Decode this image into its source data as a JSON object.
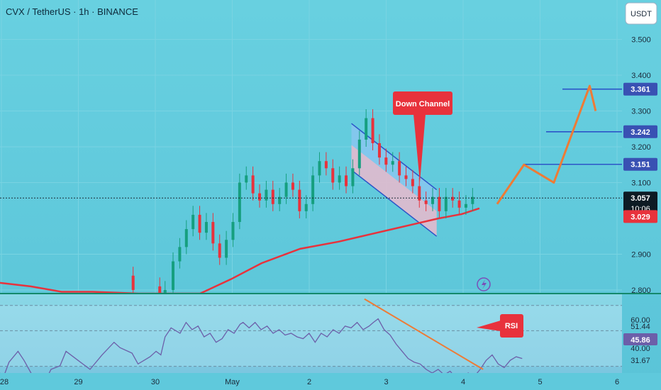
{
  "header": {
    "title": "CVX / TetherUS · 1h · BINANCE",
    "currency_button": "USDT"
  },
  "chart_data": {
    "type": "candlestick",
    "symbol": "CVX / TetherUS",
    "interval": "1h",
    "exchange": "BINANCE",
    "price_axis": {
      "ticks": [
        "3.500",
        "3.400",
        "3.300",
        "3.200",
        "3.100",
        "2.900",
        "2.800"
      ],
      "tick_values": [
        3.5,
        3.4,
        3.3,
        3.2,
        3.1,
        2.9,
        2.8
      ],
      "range": [
        2.79,
        3.61
      ]
    },
    "time_axis": {
      "labels": [
        "28",
        "29",
        "30",
        "May",
        "2",
        "3",
        "4",
        "5",
        "6"
      ]
    },
    "price_labels": [
      {
        "text": "3.361",
        "value": 3.361,
        "color": "#3951b3"
      },
      {
        "text": "3.242",
        "value": 3.242,
        "color": "#3951b3"
      },
      {
        "text": "3.151",
        "value": 3.151,
        "color": "#3951b3"
      }
    ],
    "current_price": {
      "text": "3.057",
      "value": 3.057,
      "countdown": "10:06"
    },
    "ma_price": {
      "text": "3.029",
      "value": 3.029,
      "color": "#e8323c"
    },
    "annotations": {
      "channel_label": "Down Channel",
      "rsi_label": "RSI"
    },
    "channel": {
      "upper": [
        [
          2.64,
          3.265
        ],
        [
          3.28,
          3.08
        ]
      ],
      "lower": [
        [
          2.64,
          3.135
        ],
        [
          3.28,
          2.95
        ]
      ]
    },
    "target_path": [
      [
        3.33,
        3.04
      ],
      [
        3.51,
        3.15
      ],
      [
        3.71,
        3.1
      ],
      [
        3.95,
        3.37
      ],
      [
        3.99,
        3.3
      ]
    ],
    "ma_line": [
      [
        0.0,
        2.82
      ],
      [
        0.4,
        2.81
      ],
      [
        0.8,
        2.795
      ],
      [
        1.2,
        2.795
      ],
      [
        1.8,
        2.79
      ],
      [
        2.6,
        2.79
      ],
      [
        3.0,
        2.83
      ],
      [
        3.4,
        2.875
      ],
      [
        3.9,
        2.915
      ],
      [
        4.4,
        2.935
      ],
      [
        4.8,
        2.955
      ],
      [
        5.1,
        2.97
      ],
      [
        5.4,
        2.985
      ],
      [
        5.7,
        3.0
      ],
      [
        6.0,
        3.012
      ],
      [
        6.23,
        3.028
      ]
    ],
    "candles": [
      [
        1.0,
        2.84,
        2.8
      ],
      [
        1.2,
        2.81,
        2.78
      ],
      [
        1.24,
        2.77,
        2.8
      ],
      [
        1.3,
        2.8,
        2.88
      ],
      [
        1.35,
        2.88,
        2.92
      ],
      [
        1.4,
        2.92,
        2.97
      ],
      [
        1.45,
        2.97,
        3.01
      ],
      [
        1.5,
        3.01,
        2.96
      ],
      [
        1.55,
        2.96,
        2.99
      ],
      [
        1.6,
        2.99,
        2.93
      ],
      [
        1.65,
        2.93,
        2.89
      ],
      [
        1.7,
        2.89,
        2.94
      ],
      [
        1.75,
        2.94,
        2.99
      ],
      [
        1.8,
        2.99,
        3.1
      ],
      [
        1.85,
        3.1,
        3.12
      ],
      [
        1.9,
        3.12,
        3.07
      ],
      [
        1.95,
        3.07,
        3.05
      ],
      [
        2.0,
        3.05,
        3.08
      ],
      [
        2.05,
        3.08,
        3.04
      ],
      [
        2.1,
        3.04,
        3.06
      ],
      [
        2.15,
        3.06,
        3.1
      ],
      [
        2.2,
        3.1,
        3.08
      ],
      [
        2.25,
        3.08,
        3.02
      ],
      [
        2.3,
        3.02,
        3.04
      ],
      [
        2.35,
        3.04,
        3.12
      ],
      [
        2.4,
        3.12,
        3.16
      ],
      [
        2.45,
        3.16,
        3.14
      ],
      [
        2.5,
        3.14,
        3.1
      ],
      [
        2.55,
        3.1,
        3.12
      ],
      [
        2.6,
        3.12,
        3.09
      ],
      [
        2.65,
        3.09,
        3.14
      ],
      [
        2.7,
        3.14,
        3.22
      ],
      [
        2.75,
        3.22,
        3.28
      ],
      [
        2.8,
        3.28,
        3.21
      ],
      [
        2.85,
        3.21,
        3.17
      ],
      [
        2.9,
        3.17,
        3.15
      ],
      [
        2.95,
        3.15,
        3.16
      ],
      [
        3.0,
        3.16,
        3.12
      ],
      [
        3.05,
        3.12,
        3.11
      ],
      [
        3.1,
        3.11,
        3.09
      ],
      [
        3.15,
        3.09,
        3.05
      ],
      [
        3.2,
        3.05,
        3.04
      ],
      [
        3.25,
        3.04,
        3.06
      ],
      [
        3.3,
        3.06,
        3.02
      ],
      [
        3.35,
        3.02,
        3.06
      ],
      [
        3.4,
        3.06,
        3.05
      ],
      [
        3.45,
        3.05,
        3.03
      ],
      [
        3.5,
        3.03,
        3.04
      ],
      [
        3.55,
        3.04,
        3.06
      ]
    ],
    "rsi": {
      "levels": [
        "51.44",
        "45.86",
        "40.00",
        "31.67"
      ],
      "top_level": "60.00",
      "level_values": [
        51.44,
        45.86,
        40.0,
        31.67
      ],
      "range": [
        28,
        72
      ],
      "line": [
        [
          0.0,
          38
        ],
        [
          0.05,
          35
        ],
        [
          0.15,
          44
        ],
        [
          0.3,
          50
        ],
        [
          0.4,
          45
        ],
        [
          0.55,
          36
        ],
        [
          0.7,
          30
        ],
        [
          0.85,
          40
        ],
        [
          1.0,
          42
        ],
        [
          1.1,
          50
        ],
        [
          1.3,
          45
        ],
        [
          1.5,
          40
        ],
        [
          1.7,
          48
        ],
        [
          1.9,
          55
        ],
        [
          2.0,
          52
        ],
        [
          2.2,
          49
        ],
        [
          2.3,
          43
        ],
        [
          2.5,
          47
        ],
        [
          2.6,
          50
        ],
        [
          2.68,
          48
        ],
        [
          2.75,
          58
        ],
        [
          2.85,
          63
        ],
        [
          3.0,
          60
        ],
        [
          3.1,
          66
        ],
        [
          3.2,
          62
        ],
        [
          3.3,
          64
        ],
        [
          3.4,
          58
        ],
        [
          3.5,
          60
        ],
        [
          3.6,
          55
        ],
        [
          3.7,
          57
        ],
        [
          3.8,
          62
        ],
        [
          3.9,
          60
        ],
        [
          4.0,
          65
        ],
        [
          4.05,
          66
        ],
        [
          4.15,
          63
        ],
        [
          4.25,
          66
        ],
        [
          4.35,
          62
        ],
        [
          4.45,
          64
        ],
        [
          4.55,
          60
        ],
        [
          4.65,
          62
        ],
        [
          4.75,
          59
        ],
        [
          4.85,
          60
        ],
        [
          4.95,
          58
        ],
        [
          5.05,
          57
        ],
        [
          5.15,
          60
        ],
        [
          5.25,
          55
        ],
        [
          5.35,
          60
        ],
        [
          5.45,
          58
        ],
        [
          5.55,
          62
        ],
        [
          5.65,
          60
        ],
        [
          5.75,
          64
        ],
        [
          5.85,
          63
        ],
        [
          5.95,
          66
        ],
        [
          6.05,
          62
        ],
        [
          6.15,
          64
        ],
        [
          6.22,
          66
        ],
        [
          6.3,
          68
        ],
        [
          6.4,
          62
        ],
        [
          6.5,
          59
        ],
        [
          6.6,
          54
        ],
        [
          6.7,
          50
        ],
        [
          6.8,
          46
        ],
        [
          6.9,
          44
        ],
        [
          7.0,
          43
        ],
        [
          7.1,
          40
        ],
        [
          7.2,
          38
        ],
        [
          7.3,
          40
        ],
        [
          7.4,
          37
        ],
        [
          7.5,
          39
        ],
        [
          7.6,
          35
        ],
        [
          7.7,
          34
        ],
        [
          7.8,
          38
        ],
        [
          7.9,
          36
        ],
        [
          8.0,
          40
        ],
        [
          8.1,
          45
        ],
        [
          8.2,
          48
        ],
        [
          8.3,
          43
        ],
        [
          8.4,
          41
        ],
        [
          8.5,
          45
        ],
        [
          8.6,
          47
        ],
        [
          8.7,
          46
        ]
      ],
      "trendline": [
        [
          6.4,
          65
        ],
        [
          8.6,
          40
        ]
      ]
    },
    "colors": {
      "background": "#5fc9dc",
      "up_candle": "#169f7f",
      "down_candle": "#e8323c",
      "channel_fill": "#8ec5f2",
      "channel_fill_low": "#f2b8c6",
      "target_path": "#ee7b35",
      "ma_line": "#e8323c",
      "rsi_line": "#6c5fa9",
      "axis_label_box": "#3951b3"
    }
  }
}
